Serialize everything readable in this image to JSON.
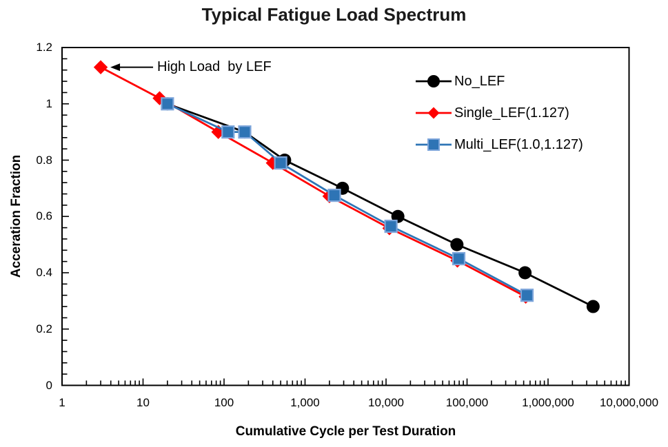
{
  "title": "Typical Fatigue Load Spectrum",
  "axes": {
    "x": {
      "label": "Cumulative Cycle per Test Duration",
      "scale": "log",
      "min": 1,
      "max": 10000000,
      "ticks": [
        "1",
        "10",
        "100",
        "1,000",
        "10,000",
        "100,000",
        "1,000,000",
        "10,000,000"
      ]
    },
    "y": {
      "label": "Acceration Fraction",
      "scale": "linear",
      "min": 0,
      "max": 1.2,
      "ticks": [
        "0",
        "0.2",
        "0.4",
        "0.6",
        "0.8",
        "1",
        "1.2"
      ]
    }
  },
  "annotation": {
    "text": "High Load  by LEF",
    "target_point": [
      3,
      1.13
    ]
  },
  "legend": {
    "position": "top-right-inside"
  },
  "colors": {
    "no_lef": "#000000",
    "single_lef": "#FF0000",
    "multi_lef": "#2E75B6",
    "multi_marker_fill": "#2E74B5",
    "multi_marker_border": "#7EA6DB",
    "plot_border": "#000000"
  },
  "chart_data": {
    "type": "line",
    "title": "Typical Fatigue Load Spectrum",
    "xlabel": "Cumulative Cycle per Test Duration",
    "ylabel": "Acceration Fraction",
    "x_scale": "log",
    "xlim": [
      1,
      10000000
    ],
    "ylim": [
      0,
      1.2
    ],
    "grid": false,
    "legend_position": "top-right-inside",
    "series": [
      {
        "name": "No_LEF",
        "color": "#000000",
        "marker": "circle",
        "points": [
          [
            20,
            1.0
          ],
          [
            180,
            0.9
          ],
          [
            560,
            0.8
          ],
          [
            2900,
            0.7
          ],
          [
            14000,
            0.6
          ],
          [
            75000,
            0.5
          ],
          [
            520000,
            0.4
          ],
          [
            3600000,
            0.28
          ]
        ]
      },
      {
        "name": "Single_LEF(1.127)",
        "color": "#FF0000",
        "marker": "diamond",
        "points": [
          [
            3,
            1.13
          ],
          [
            16,
            1.02
          ],
          [
            85,
            0.9
          ],
          [
            400,
            0.79
          ],
          [
            2000,
            0.672
          ],
          [
            11000,
            0.558
          ],
          [
            76000,
            0.443
          ],
          [
            530000,
            0.315
          ]
        ]
      },
      {
        "name": "Multi_LEF(1.0,1.127)",
        "color": "#2E75B6",
        "marker": "square",
        "points": [
          [
            20,
            1.0
          ],
          [
            112,
            0.9
          ],
          [
            180,
            0.9
          ],
          [
            500,
            0.79
          ],
          [
            2300,
            0.675
          ],
          [
            11500,
            0.565
          ],
          [
            79000,
            0.45
          ],
          [
            550000,
            0.32
          ]
        ]
      }
    ],
    "annotation": {
      "text": "High Load  by LEF",
      "target_point": [
        3,
        1.13
      ]
    }
  }
}
